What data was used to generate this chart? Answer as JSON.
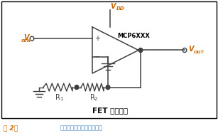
{
  "bg_color": "#ffffff",
  "border_color": "#000000",
  "circuit_color": "#404040",
  "orange_color": "#CC6600",
  "blue_caption_color": "#4080C0",
  "fig_label_color": "#CC6600",
  "title_text": "FET 输入运放",
  "vdd_label": "V",
  "vdd_sub": "DD",
  "vsen_label": "V",
  "vsen_sub": "SEN",
  "vout_label": "V",
  "vout_sub": "OUT",
  "mcp_label": "MCP6XXX",
  "r1_label": "R",
  "r1_sub": "1",
  "r2_label": "R",
  "r2_sub": "2",
  "fig_num": "图 2：",
  "caption": "针对输出电压的高阻抗传感"
}
